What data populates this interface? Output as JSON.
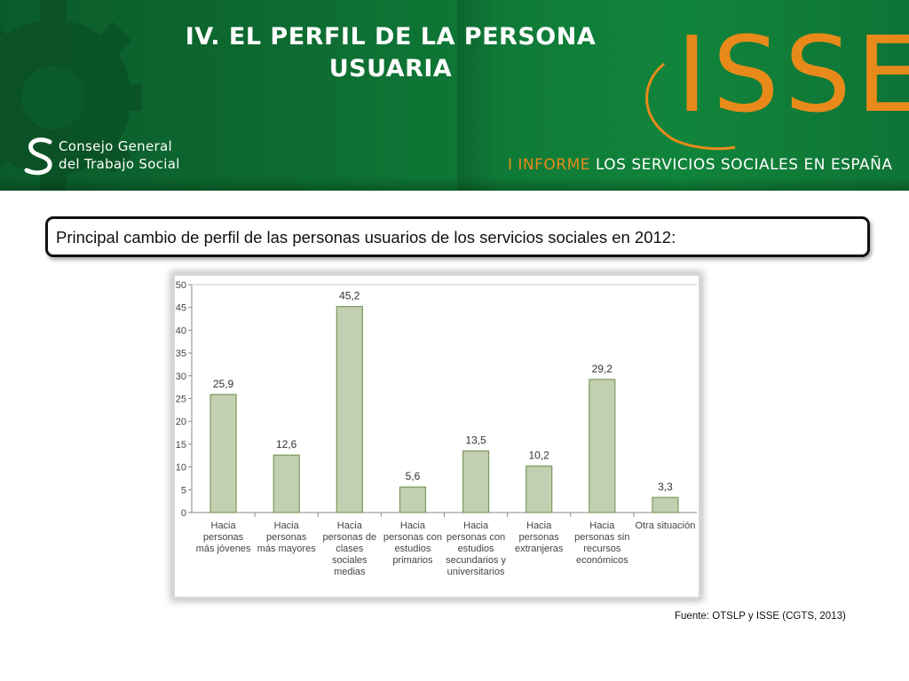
{
  "header": {
    "title_line1": "IV. EL PERFIL DE LA PERSONA",
    "title_line2": "USUARIA",
    "cgts_logo_line1": "Consejo General",
    "cgts_logo_line2": "del Trabajo Social",
    "isse_logo_text": "ISSE",
    "informe_prefix": "I INFORME",
    "informe_suffix": "LOS SERVICIOS SOCIALES EN ESPAÑA",
    "banner_color": "#0d6a30",
    "accent_color": "#e88a1a"
  },
  "caption": "Principal cambio de perfil de las personas usuarios de los servicios sociales en 2012:",
  "chart_data": {
    "type": "bar",
    "categories": [
      [
        "Hacia",
        "personas",
        "más jóvenes"
      ],
      [
        "Hacia",
        "personas",
        "más mayores"
      ],
      [
        "Hacia",
        "personas de",
        "clases",
        "sociales",
        "medias"
      ],
      [
        "Hacia",
        "personas con",
        "estudios",
        "primarios"
      ],
      [
        "Hacia",
        "personas con",
        "estudios",
        "secundarios y",
        "universitarios"
      ],
      [
        "Hacia",
        "personas",
        "extranjeras"
      ],
      [
        "Hacia",
        "personas sin",
        "recursos",
        "económicos"
      ],
      [
        "Otra situación"
      ]
    ],
    "values": [
      25.9,
      12.6,
      45.2,
      5.6,
      13.5,
      10.2,
      29.2,
      3.3
    ],
    "value_labels": [
      "25,9",
      "12,6",
      "45,2",
      "5,6",
      "13,5",
      "10,2",
      "29,2",
      "3,3"
    ],
    "yticks": [
      0,
      5,
      10,
      15,
      20,
      25,
      30,
      35,
      40,
      45,
      50
    ],
    "ylim": [
      0,
      50
    ],
    "title": "",
    "xlabel": "",
    "ylabel": "",
    "grid": false,
    "bar_color": "#c2cfb0",
    "bar_edge_color": "#7d9a5c"
  },
  "source": "Fuente: OTSLP y ISSE (CGTS, 2013)"
}
